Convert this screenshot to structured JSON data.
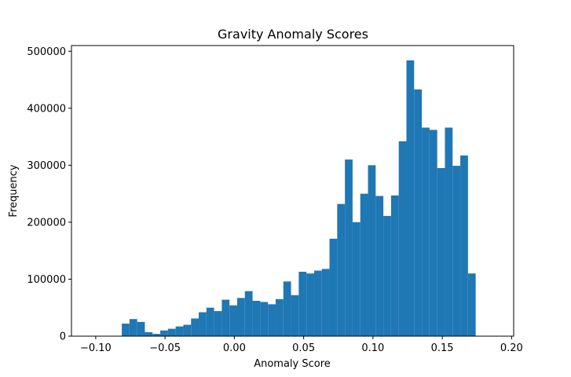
{
  "chart_data": {
    "type": "bar",
    "title": "Gravity Anomaly Scores",
    "xlabel": "Anomaly Score",
    "ylabel": "Frequency",
    "xlim": [
      -0.1175,
      0.2015
    ],
    "ylim": [
      0,
      510000
    ],
    "xticks": [
      {
        "value": -0.1,
        "label": "−0.10"
      },
      {
        "value": -0.05,
        "label": "−0.05"
      },
      {
        "value": 0.0,
        "label": "0.00"
      },
      {
        "value": 0.05,
        "label": "0.05"
      },
      {
        "value": 0.1,
        "label": "0.10"
      },
      {
        "value": 0.15,
        "label": "0.15"
      },
      {
        "value": 0.2,
        "label": "0.20"
      }
    ],
    "yticks": [
      {
        "value": 0,
        "label": "0"
      },
      {
        "value": 100000,
        "label": "100000"
      },
      {
        "value": 200000,
        "label": "200000"
      },
      {
        "value": 300000,
        "label": "300000"
      },
      {
        "value": 400000,
        "label": "400000"
      },
      {
        "value": 500000,
        "label": "500000"
      }
    ],
    "bar_color": "#1f77b4",
    "grid": false,
    "bin_start": -0.0812,
    "bin_width": 0.00555,
    "values": [
      22000,
      30000,
      25000,
      7000,
      4000,
      10000,
      13000,
      17000,
      20000,
      31000,
      42000,
      50000,
      44000,
      64000,
      54000,
      67000,
      79000,
      62000,
      60000,
      56000,
      65000,
      96000,
      72000,
      113000,
      110000,
      115000,
      118000,
      171000,
      232000,
      310000,
      200000,
      250000,
      300000,
      246000,
      211000,
      247000,
      342000,
      484000,
      433000,
      366000,
      362000,
      295000,
      366000,
      299000,
      317000,
      110000
    ]
  }
}
